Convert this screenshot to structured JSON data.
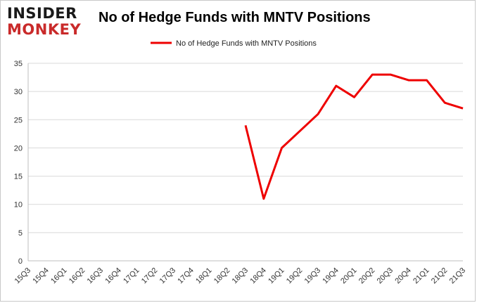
{
  "brand": {
    "line1": "INSIDER",
    "line2": "MONKEY"
  },
  "colors": {
    "series": "#ee0000",
    "brand_dark": "#1a1a1a",
    "brand_red": "#c92a2a"
  },
  "chart_data": {
    "type": "line",
    "title": "No of Hedge Funds with MNTV Positions",
    "xlabel": "",
    "ylabel": "",
    "categories": [
      "15Q3",
      "15Q4",
      "16Q1",
      "16Q2",
      "16Q3",
      "16Q4",
      "17Q1",
      "17Q2",
      "17Q3",
      "17Q4",
      "18Q1",
      "18Q2",
      "18Q3",
      "18Q4",
      "19Q1",
      "19Q2",
      "19Q3",
      "19Q4",
      "20Q1",
      "20Q2",
      "20Q3",
      "20Q4",
      "21Q1",
      "21Q2",
      "21Q3"
    ],
    "ylim": [
      0,
      35
    ],
    "yticks": [
      0,
      5,
      10,
      15,
      20,
      25,
      30,
      35
    ],
    "grid": true,
    "legend_position": "top-center",
    "series": [
      {
        "name": "No of Hedge Funds with MNTV Positions",
        "values": [
          null,
          null,
          null,
          null,
          null,
          null,
          null,
          null,
          null,
          null,
          null,
          null,
          24,
          11,
          20,
          23,
          26,
          31,
          29,
          33,
          33,
          32,
          32,
          28,
          27
        ]
      }
    ]
  }
}
